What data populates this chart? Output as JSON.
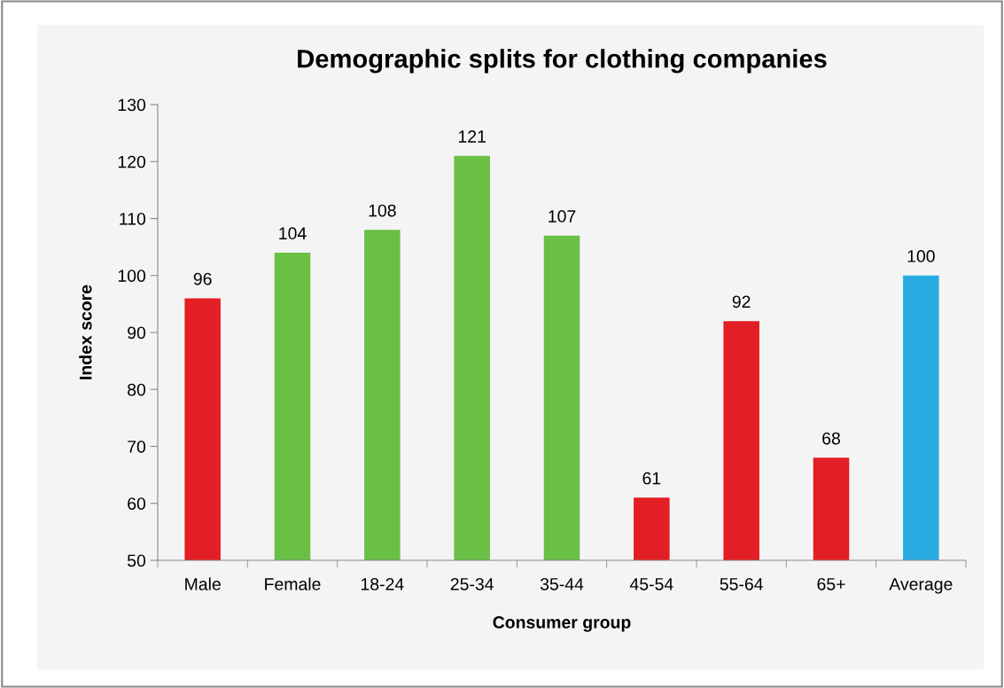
{
  "chart_data": {
    "type": "bar",
    "title": "Demographic splits for clothing companies",
    "xlabel": "Consumer group",
    "ylabel": "Index score",
    "categories": [
      "Male",
      "Female",
      "18-24",
      "25-34",
      "35-44",
      "45-54",
      "55-64",
      "65+",
      "Average"
    ],
    "values": [
      96,
      104,
      108,
      121,
      107,
      61,
      92,
      68,
      100
    ],
    "colors": [
      "#e31e24",
      "#6abf45",
      "#6abf45",
      "#6abf45",
      "#6abf45",
      "#e31e24",
      "#e31e24",
      "#e31e24",
      "#29abe2"
    ],
    "ylim": [
      50,
      130
    ],
    "yticks": [
      50,
      60,
      70,
      80,
      90,
      100,
      110,
      120,
      130
    ],
    "data_labels": true,
    "grid": false
  }
}
